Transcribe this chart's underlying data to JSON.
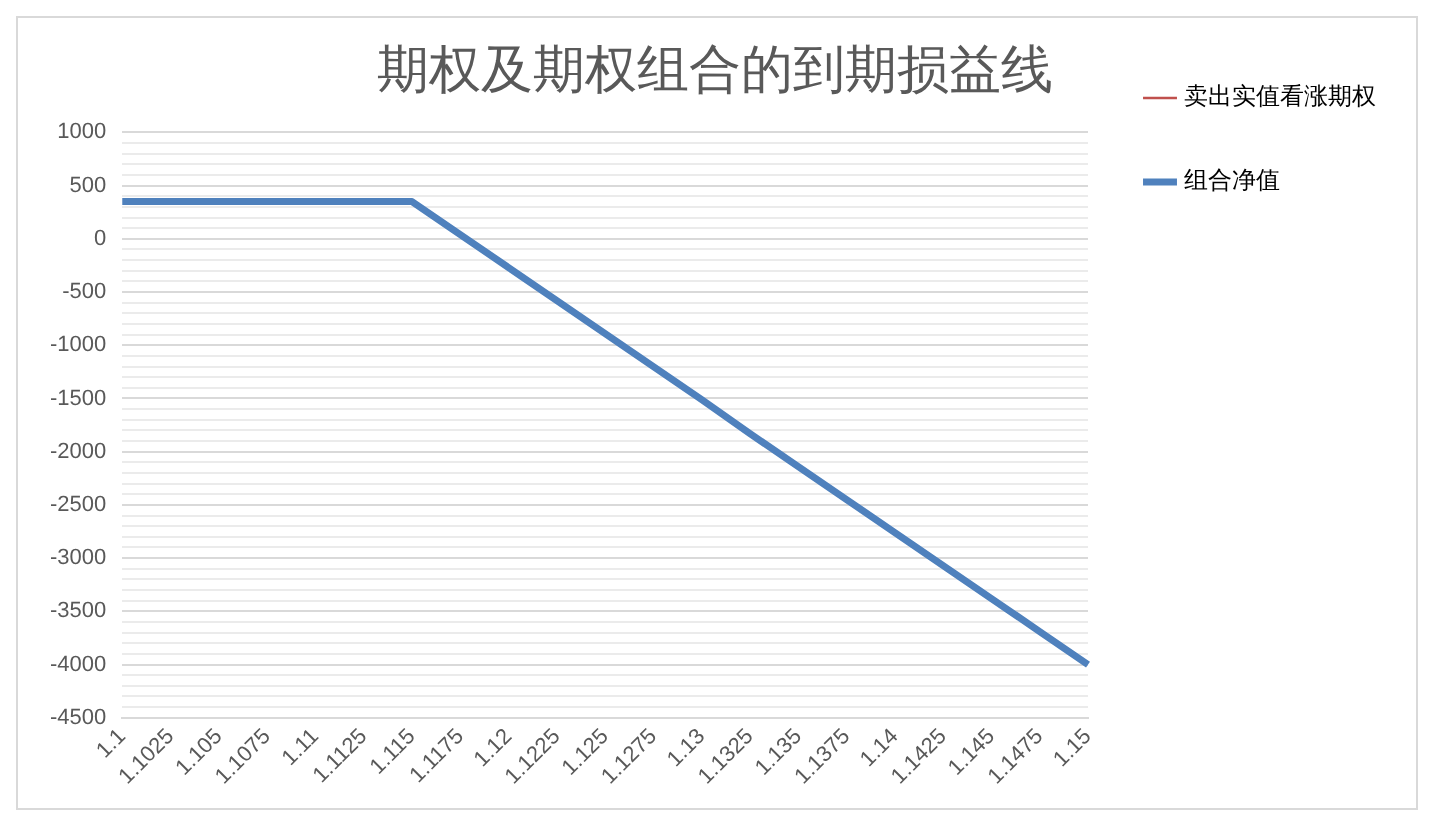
{
  "chart_data": {
    "type": "line",
    "title": "期权及期权组合的到期损益线",
    "categories": [
      "1.1",
      "1.1025",
      "1.105",
      "1.1075",
      "1.11",
      "1.1125",
      "1.115",
      "1.1175",
      "1.12",
      "1.1225",
      "1.125",
      "1.1275",
      "1.13",
      "1.1325",
      "1.135",
      "1.1375",
      "1.14",
      "1.1425",
      "1.145",
      "1.1475",
      "1.15"
    ],
    "series": [
      {
        "name": "卖出实值看涨期权",
        "color": "#c0504d",
        "values": [
          null,
          null,
          null,
          null,
          null,
          null,
          null,
          null,
          null,
          null,
          null,
          null,
          null,
          null,
          null,
          null,
          null,
          null,
          null,
          null,
          null
        ]
      },
      {
        "name": "组合净值",
        "color": "#4f81bd",
        "values": [
          350,
          350,
          350,
          350,
          350,
          350,
          350,
          40,
          -270,
          -580,
          -890,
          -1200,
          -1510,
          -1830,
          -2140,
          -2450,
          -2760,
          -3070,
          -3380,
          -3690,
          -4000
        ]
      }
    ],
    "ylim": [
      -4500,
      1000
    ],
    "yticks": [
      -4500,
      {
        "value": -4400,
        "label": null
      },
      {
        "value": -4300,
        "label": null
      },
      {
        "value": -4200,
        "label": null
      },
      {
        "value": -4100,
        "label": null
      },
      -4000,
      {
        "value": -3900,
        "label": null
      },
      {
        "value": -3800,
        "label": null
      },
      {
        "value": -3700,
        "label": null
      },
      {
        "value": -3600,
        "label": null
      },
      -3500,
      {
        "value": -3400,
        "label": null
      },
      {
        "value": -3300,
        "label": null
      },
      {
        "value": -3200,
        "label": null
      },
      {
        "value": -3100,
        "label": null
      },
      -3000,
      {
        "value": -2900,
        "label": null
      },
      {
        "value": -2800,
        "label": null
      },
      {
        "value": -2700,
        "label": null
      },
      {
        "value": -2600,
        "label": null
      },
      -2500,
      {
        "value": -2400,
        "label": null
      },
      {
        "value": -2300,
        "label": null
      },
      {
        "value": -2200,
        "label": null
      },
      {
        "value": -2100,
        "label": null
      },
      -2000,
      {
        "value": -1900,
        "label": null
      },
      {
        "value": -1800,
        "label": null
      },
      {
        "value": -1700,
        "label": null
      },
      {
        "value": -1600,
        "label": null
      },
      -1500,
      {
        "value": -1400,
        "label": null
      },
      {
        "value": -1300,
        "label": null
      },
      {
        "value": -1200,
        "label": null
      },
      {
        "value": -1100,
        "label": null
      },
      -1000,
      {
        "value": -900,
        "label": null
      },
      {
        "value": -800,
        "label": null
      },
      {
        "value": -700,
        "label": null
      },
      {
        "value": -600,
        "label": null
      },
      -500,
      {
        "value": -400,
        "label": null
      },
      {
        "value": -300,
        "label": null
      },
      {
        "value": -200,
        "label": null
      },
      {
        "value": -100,
        "label": null
      },
      0,
      {
        "value": 100,
        "label": null
      },
      {
        "value": 200,
        "label": null
      },
      {
        "value": 300,
        "label": null
      },
      {
        "value": 400,
        "label": null
      },
      500,
      {
        "value": 600,
        "label": null
      },
      {
        "value": 700,
        "label": null
      },
      {
        "value": 800,
        "label": null
      },
      {
        "value": 900,
        "label": null
      },
      1000
    ],
    "grid": "y",
    "legend": "right",
    "marker": "none",
    "line_style": "solid"
  }
}
